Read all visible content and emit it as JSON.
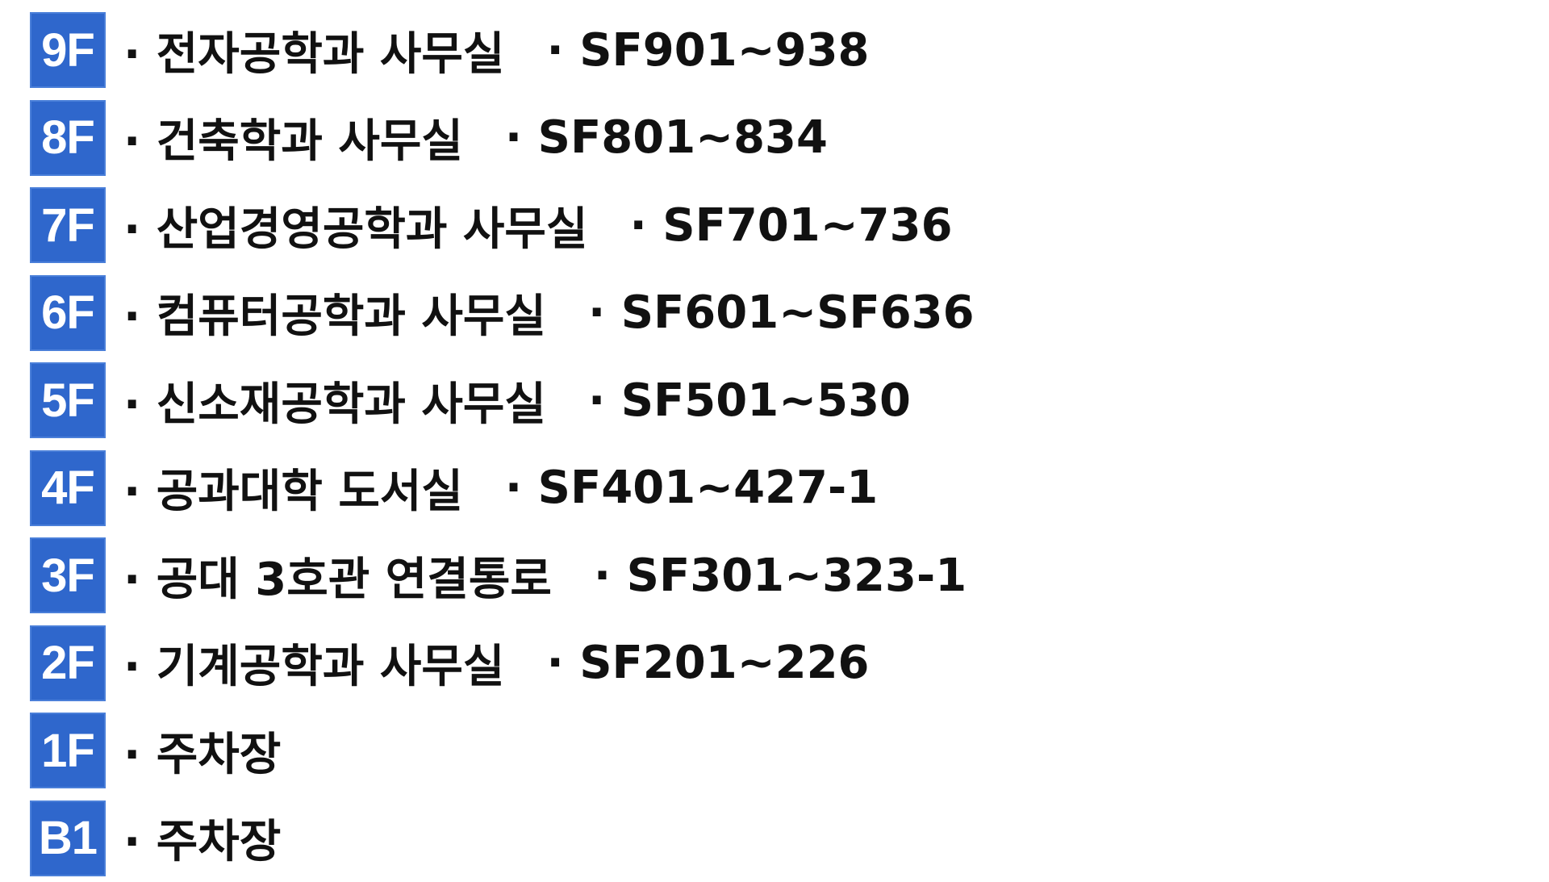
{
  "floors": [
    {
      "badge": "9F",
      "dept": "· 전자공학과 사무실",
      "rooms": "· SF901~938"
    },
    {
      "badge": "8F",
      "dept": "· 건축학과 사무실",
      "rooms": "· SF801~834"
    },
    {
      "badge": "7F",
      "dept": "· 산업경영공학과 사무실",
      "rooms": "· SF701~736"
    },
    {
      "badge": "6F",
      "dept": "· 컴퓨터공학과 사무실",
      "rooms": "· SF601~SF636"
    },
    {
      "badge": "5F",
      "dept": "· 신소재공학과 사무실",
      "rooms": "· SF501~530"
    },
    {
      "badge": "4F",
      "dept": "· 공과대학 도서실",
      "rooms": "· SF401~427-1"
    },
    {
      "badge": "3F",
      "dept": "· 공대 3호관 연결통로",
      "rooms": "· SF301~323-1"
    },
    {
      "badge": "2F",
      "dept": "· 기계공학과 사무실",
      "rooms": "· SF201~226"
    },
    {
      "badge": "1F",
      "dept": "· 주차장",
      "rooms": ""
    },
    {
      "badge": "B1",
      "dept": "· 주차장",
      "rooms": ""
    }
  ],
  "colors": {
    "badge_bg": "#2f67cc",
    "text": "#111111"
  }
}
